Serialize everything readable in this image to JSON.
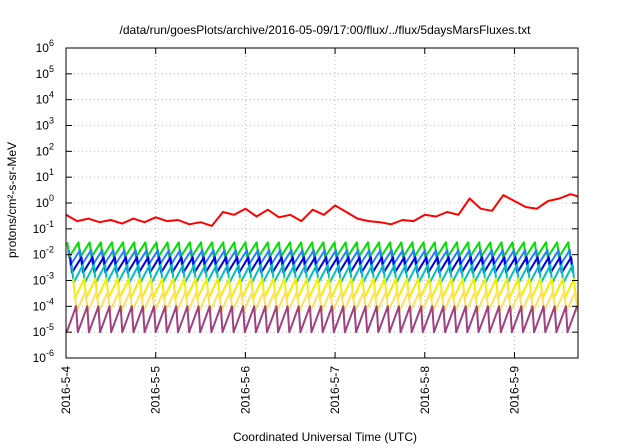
{
  "chart_data": {
    "type": "line",
    "title": "/data/run/goesPlots/archive/2016-05-09/17:00/flux/../flux/5daysMarsFluxes.txt",
    "xlabel": "Coordinated Universal Time (UTC)",
    "ylabel": "protons/cm²-s-sr-MeV",
    "x_ticks": [
      "2016-5-4",
      "2016-5-5",
      "2016-5-6",
      "2016-5-7",
      "2016-5-8",
      "2016-5-9"
    ],
    "xlim": [
      "2016-05-04T00:00",
      "2016-05-09T17:00"
    ],
    "y_scale": "log",
    "ylim": [
      1e-06,
      1000000.0
    ],
    "y_ticks": [
      {
        "base": "10",
        "exp": "-6"
      },
      {
        "base": "10",
        "exp": "-5"
      },
      {
        "base": "10",
        "exp": "-4"
      },
      {
        "base": "10",
        "exp": "-3"
      },
      {
        "base": "10",
        "exp": "-2"
      },
      {
        "base": "10",
        "exp": "-1"
      },
      {
        "base": "10",
        "exp": "0"
      },
      {
        "base": "10",
        "exp": "1"
      },
      {
        "base": "10",
        "exp": "2"
      },
      {
        "base": "10",
        "exp": "3"
      },
      {
        "base": "10",
        "exp": "4"
      },
      {
        "base": "10",
        "exp": "5"
      },
      {
        "base": "10",
        "exp": "6"
      }
    ],
    "grid": true,
    "series": [
      {
        "color": "#ff0000",
        "values": [
          [
            "2016-05-04T00:00",
            0.35
          ],
          [
            "2016-05-04T03:00",
            0.2
          ],
          [
            "2016-05-04T06:00",
            0.25
          ],
          [
            "2016-05-04T09:00",
            0.18
          ],
          [
            "2016-05-04T12:00",
            0.22
          ],
          [
            "2016-05-04T15:00",
            0.16
          ],
          [
            "2016-05-04T18:00",
            0.25
          ],
          [
            "2016-05-04T21:00",
            0.18
          ],
          [
            "2016-05-05T00:00",
            0.28
          ],
          [
            "2016-05-05T03:00",
            0.2
          ],
          [
            "2016-05-05T06:00",
            0.22
          ],
          [
            "2016-05-05T09:00",
            0.15
          ],
          [
            "2016-05-05T12:00",
            0.18
          ],
          [
            "2016-05-05T15:00",
            0.13
          ],
          [
            "2016-05-05T18:00",
            0.45
          ],
          [
            "2016-05-05T21:00",
            0.35
          ],
          [
            "2016-05-06T00:00",
            0.6
          ],
          [
            "2016-05-06T03:00",
            0.3
          ],
          [
            "2016-05-06T06:00",
            0.55
          ],
          [
            "2016-05-06T09:00",
            0.28
          ],
          [
            "2016-05-06T12:00",
            0.35
          ],
          [
            "2016-05-06T15:00",
            0.2
          ],
          [
            "2016-05-06T18:00",
            0.55
          ],
          [
            "2016-05-06T21:00",
            0.35
          ],
          [
            "2016-05-07T00:00",
            0.8
          ],
          [
            "2016-05-07T03:00",
            0.45
          ],
          [
            "2016-05-07T06:00",
            0.25
          ],
          [
            "2016-05-07T09:00",
            0.2
          ],
          [
            "2016-05-07T12:00",
            0.18
          ],
          [
            "2016-05-07T15:00",
            0.15
          ],
          [
            "2016-05-07T18:00",
            0.22
          ],
          [
            "2016-05-07T21:00",
            0.2
          ],
          [
            "2016-05-08T00:00",
            0.35
          ],
          [
            "2016-05-08T03:00",
            0.3
          ],
          [
            "2016-05-08T06:00",
            0.45
          ],
          [
            "2016-05-08T09:00",
            0.35
          ],
          [
            "2016-05-08T12:00",
            1.5
          ],
          [
            "2016-05-08T15:00",
            0.6
          ],
          [
            "2016-05-08T18:00",
            0.5
          ],
          [
            "2016-05-08T21:00",
            2.0
          ],
          [
            "2016-05-09T00:00",
            1.2
          ],
          [
            "2016-05-09T03:00",
            0.7
          ],
          [
            "2016-05-09T06:00",
            0.6
          ],
          [
            "2016-05-09T09:00",
            1.2
          ],
          [
            "2016-05-09T12:00",
            1.5
          ],
          [
            "2016-05-09T15:00",
            2.2
          ],
          [
            "2016-05-09T17:00",
            1.8
          ]
        ]
      },
      {
        "color": "#00e000",
        "min": 0.008,
        "max": 0.03
      },
      {
        "color": "#2080ff",
        "min": 0.004,
        "max": 0.015
      },
      {
        "color": "#0000e0",
        "min": 0.002,
        "max": 0.008
      },
      {
        "color": "#00c0c0",
        "min": 0.0008,
        "max": 0.004
      },
      {
        "color": "#f0f000",
        "min": 0.0002,
        "max": 0.0012
      },
      {
        "color": "#ffe060",
        "min": 6e-05,
        "max": 0.0004
      },
      {
        "color": "#a04080",
        "min": 1e-05,
        "max": 0.0001
      }
    ],
    "spike_cycles": 46
  }
}
